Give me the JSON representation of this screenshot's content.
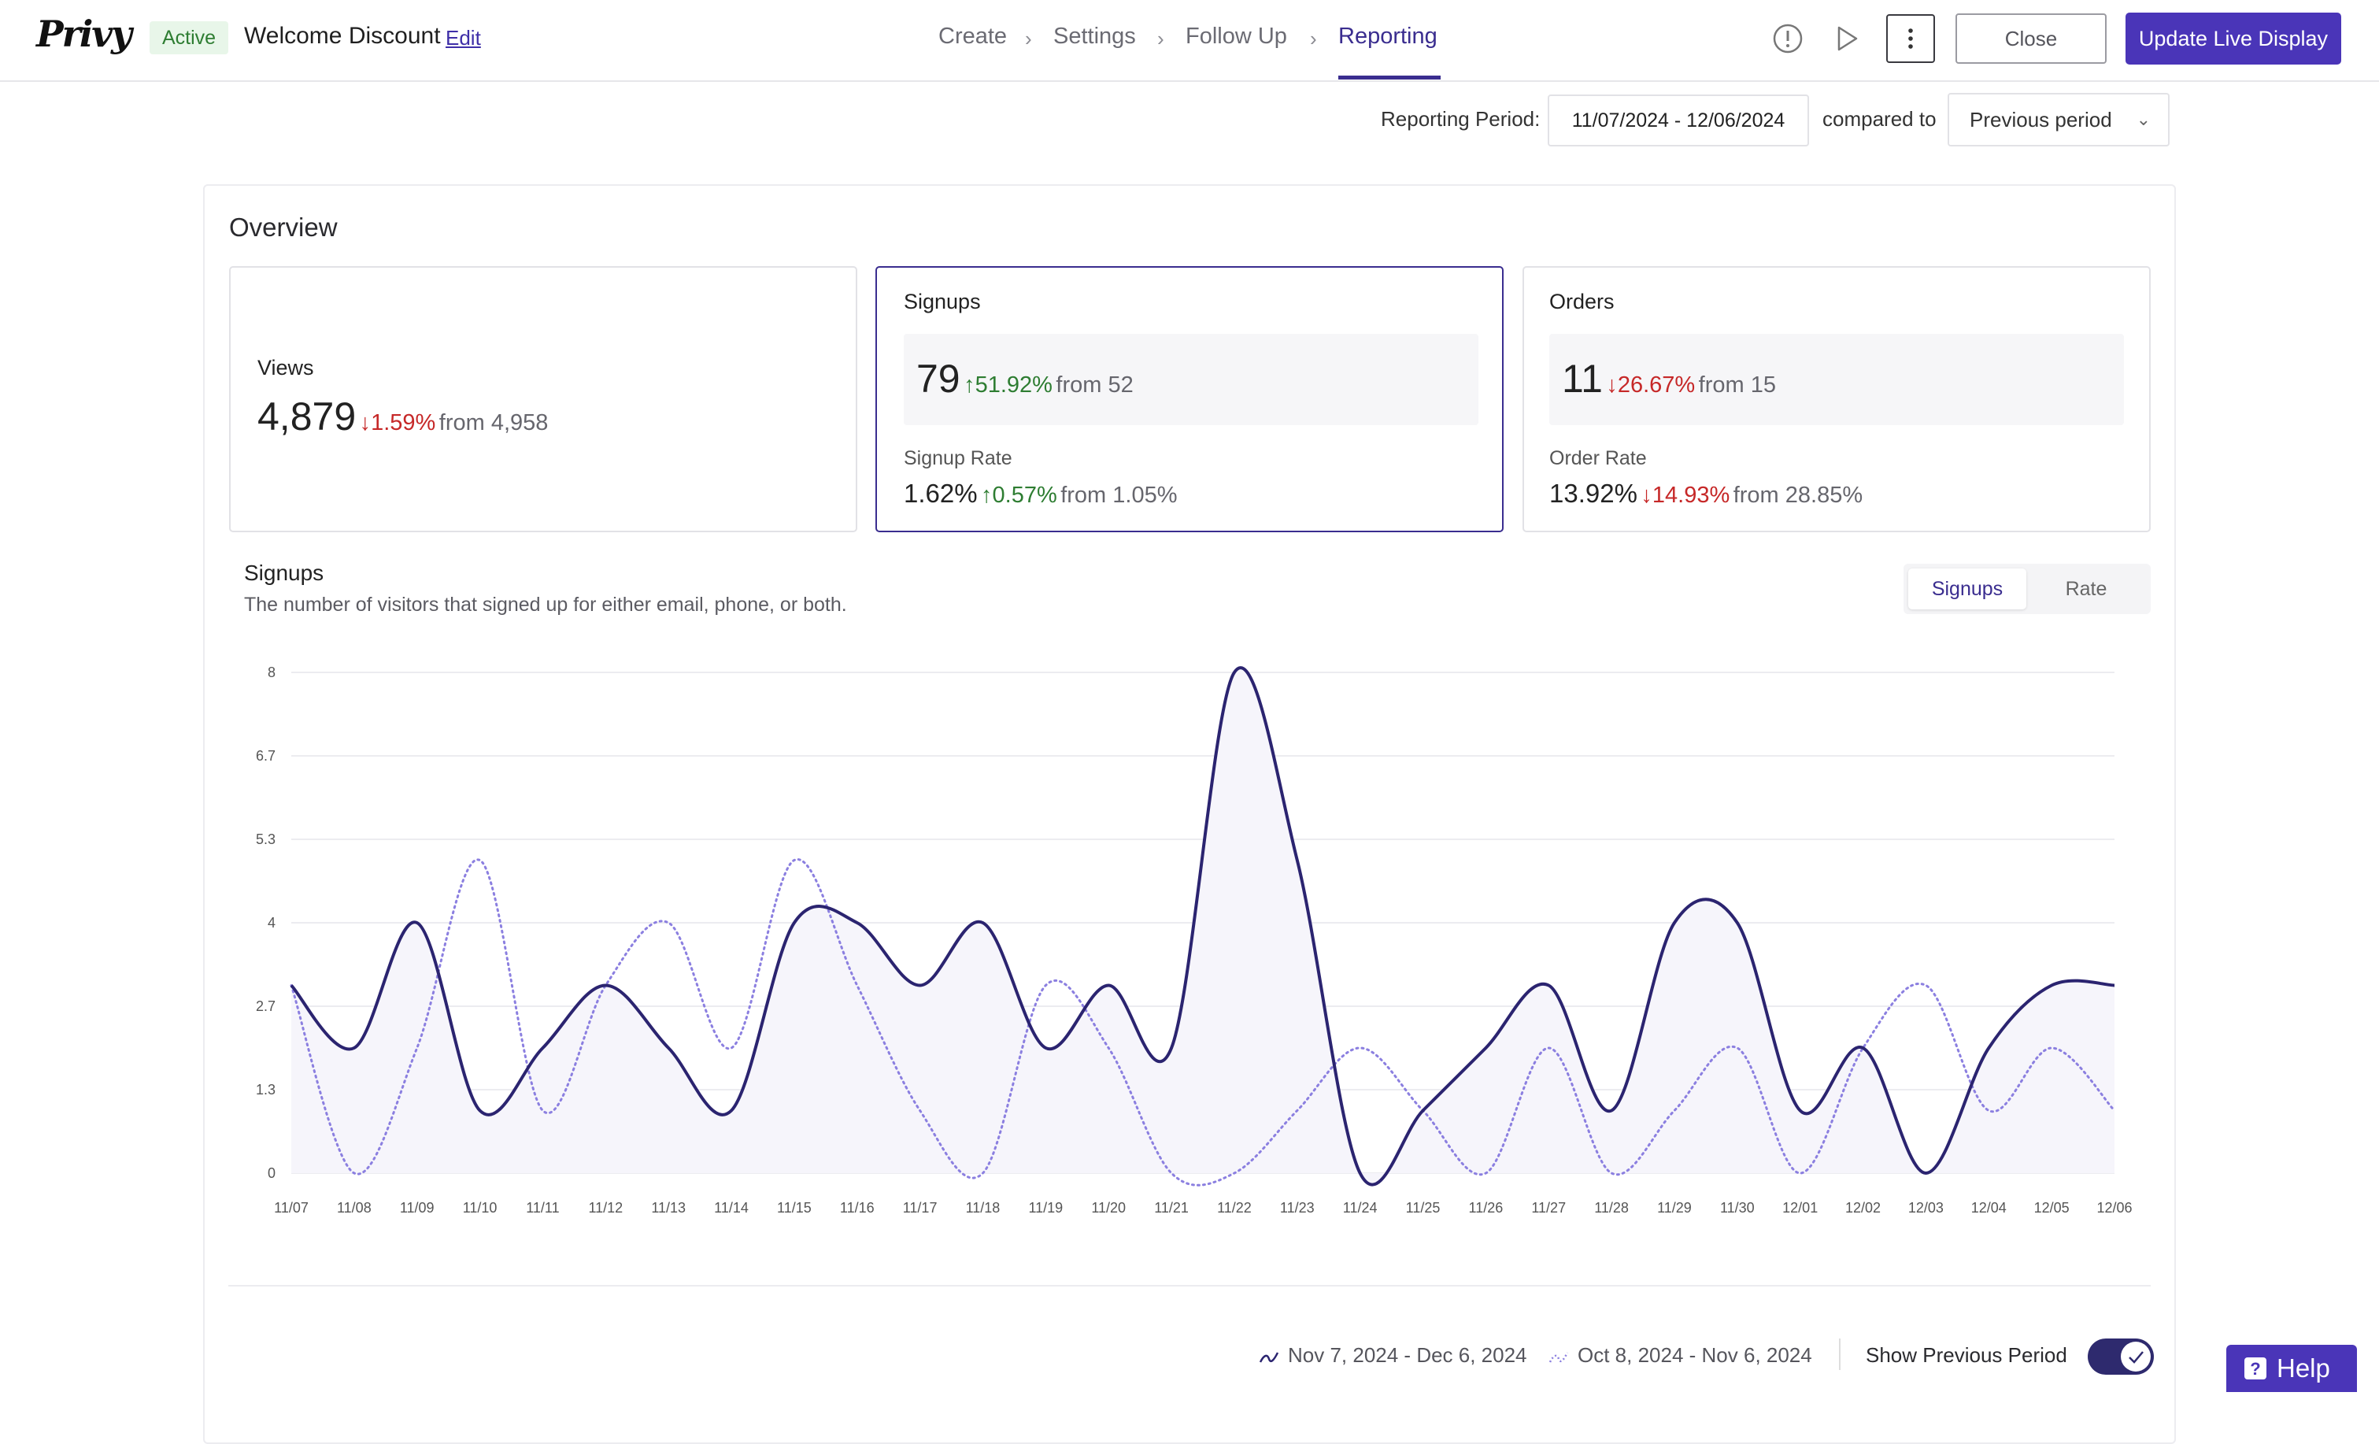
{
  "header": {
    "logo": "Privy",
    "status_badge": "Active",
    "campaign_name": "Welcome Discount",
    "edit_link": "Edit",
    "steps": [
      "Create",
      "Settings",
      "Follow Up",
      "Reporting"
    ],
    "active_step": "Reporting",
    "close_label": "Close",
    "update_label": "Update Live Display",
    "icons": [
      "info-icon",
      "play-icon",
      "more-vertical-icon"
    ]
  },
  "reporting": {
    "period_label": "Reporting Period:",
    "period_value": "11/07/2024 - 12/06/2024",
    "compared_label": "compared to",
    "compared_value": "Previous period"
  },
  "overview": {
    "title": "Overview",
    "views": {
      "label": "Views",
      "value": "4,879",
      "change": "1.59%",
      "direction": "down",
      "from": "from 4,958"
    },
    "signups": {
      "label": "Signups",
      "value": "79",
      "change": "51.92%",
      "direction": "up",
      "from": "from 52",
      "rate_label": "Signup Rate",
      "rate_value": "1.62%",
      "rate_change": "0.57%",
      "rate_direction": "up",
      "rate_from": "from 1.05%"
    },
    "orders": {
      "label": "Orders",
      "value": "11",
      "change": "26.67%",
      "direction": "down",
      "from": "from 15",
      "rate_label": "Order Rate",
      "rate_value": "13.92%",
      "rate_change": "14.93%",
      "rate_direction": "down",
      "rate_from": "from 28.85%"
    }
  },
  "chart_section": {
    "title": "Signups",
    "description": "The number of visitors that signed up for either email, phone, or both.",
    "toggle_options": [
      "Signups",
      "Rate"
    ],
    "selected_toggle": "Signups",
    "legend_current": "Nov 7, 2024 - Dec 6, 2024",
    "legend_previous": "Oct 8, 2024 - Nov 6, 2024",
    "show_previous_label": "Show Previous Period",
    "show_previous_on": true
  },
  "chart_data": {
    "type": "line",
    "title": "",
    "xlabel": "",
    "ylabel": "",
    "ylim": [
      0,
      8
    ],
    "y_ticks": [
      "0",
      "1.3",
      "2.7",
      "4",
      "5.3",
      "6.7",
      "8"
    ],
    "categories": [
      "11/07",
      "11/08",
      "11/09",
      "11/10",
      "11/11",
      "11/12",
      "11/13",
      "11/14",
      "11/15",
      "11/16",
      "11/17",
      "11/18",
      "11/19",
      "11/20",
      "11/21",
      "11/22",
      "11/23",
      "11/24",
      "11/25",
      "11/26",
      "11/27",
      "11/28",
      "11/29",
      "11/30",
      "12/01",
      "12/02",
      "12/03",
      "12/04",
      "12/05",
      "12/06"
    ],
    "series": [
      {
        "values": [
          3,
          2,
          4,
          1,
          2,
          3,
          2,
          1,
          4,
          4,
          3,
          4,
          2,
          3,
          2,
          8,
          5,
          0,
          1,
          2,
          3,
          1,
          4,
          4,
          1,
          2,
          0,
          2,
          3,
          3
        ],
        "color": "#2b2470",
        "style": "solid",
        "fill": true
      },
      {
        "values": [
          3,
          0,
          2,
          5,
          1,
          3,
          4,
          2,
          5,
          3,
          1,
          0,
          3,
          2,
          0,
          0,
          1,
          2,
          1,
          0,
          2,
          0,
          1,
          2,
          0,
          2,
          3,
          1,
          2,
          1
        ],
        "color": "#8b7fe0",
        "style": "dotted",
        "fill": false
      }
    ],
    "grid": true
  },
  "help": {
    "label": "Help"
  }
}
